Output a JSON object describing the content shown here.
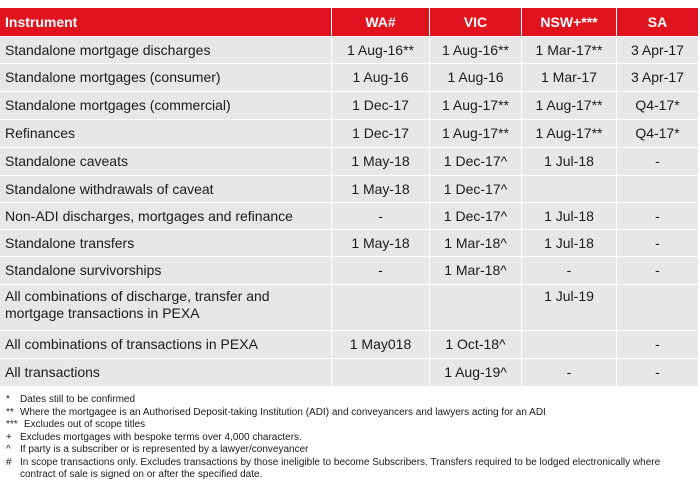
{
  "table": {
    "headers": [
      "Instrument",
      "WA#",
      "VIC",
      "NSW+***",
      "SA"
    ],
    "rows": [
      [
        "Standalone mortgage discharges",
        "1 Aug-16**",
        "1 Aug-16**",
        "1 Mar-17**",
        "3 Apr-17"
      ],
      [
        "Standalone mortgages (consumer)",
        "1 Aug-16",
        "1 Aug-16",
        "1 Mar-17",
        "3 Apr-17"
      ],
      [
        "Standalone mortgages (commercial)",
        "1 Dec-17",
        "1 Aug-17**",
        "1 Aug-17**",
        "Q4-17*"
      ],
      [
        "Refinances",
        "1 Dec-17",
        "1 Aug-17**",
        "1 Aug-17**",
        "Q4-17*"
      ],
      [
        "Standalone caveats",
        "1 May-18",
        "1 Dec-17^",
        "1 Jul-18",
        "-"
      ],
      [
        "Standalone withdrawals of caveat",
        "1 May-18",
        "1 Dec-17^",
        "",
        ""
      ],
      [
        "Non-ADI discharges, mortgages and refinance",
        "-",
        "1 Dec-17^",
        "1 Jul-18",
        "-"
      ],
      [
        "Standalone transfers",
        "1 May-18",
        "1 Mar-18^",
        "1 Jul-18",
        "-"
      ],
      [
        "Standalone survivorships",
        "-",
        "1 Mar-18^",
        "-",
        "-"
      ],
      [
        "All combinations of discharge, transfer and mortgage transactions in PEXA",
        "",
        "",
        "1 Jul-19",
        ""
      ],
      [
        "All combinations of transactions in PEXA",
        "1 May018",
        "1 Oct-18^",
        "",
        "-"
      ],
      [
        "All transactions",
        "",
        "1 Aug-19^",
        "-",
        "-"
      ]
    ]
  },
  "notes": [
    {
      "symbol": "*",
      "text": "Dates still to be confirmed"
    },
    {
      "symbol": "**",
      "text": "Where the mortgagee is an Authorised Deposit-taking Institution (ADI) and conveyancers and lawyers acting for an ADI"
    },
    {
      "symbol": "***",
      "text": "Excludes out of scope titles"
    },
    {
      "symbol": "+",
      "text": "Excludes mortgages with bespoke terms over 4,000 characters."
    },
    {
      "symbol": "^",
      "text": "If party is a subscriber or is represented by a lawyer/conveyancer"
    },
    {
      "symbol": "#",
      "text": "In scope transactions only. Excludes transactions by those ineligible to become Subscribers. Transfers required to be lodged electronically where contract of sale is signed on or after the specified date."
    }
  ]
}
